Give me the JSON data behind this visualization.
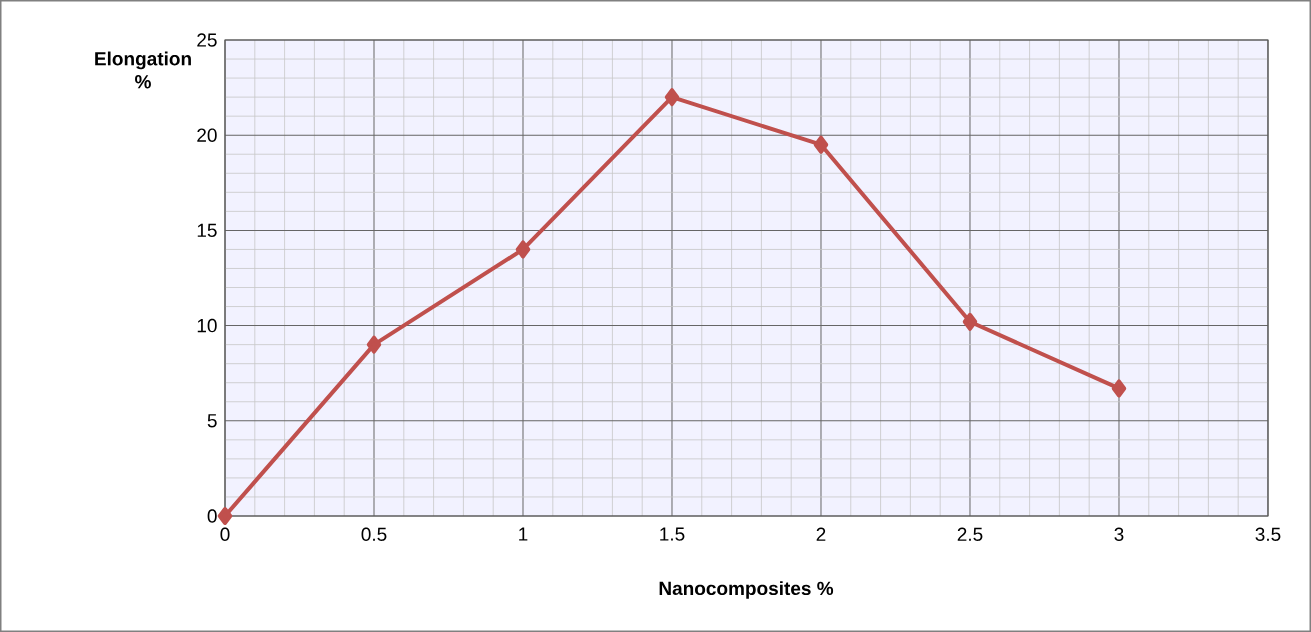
{
  "chart_data": {
    "type": "line",
    "xlabel": "Nanocomposites %",
    "ylabel": "Elongation %",
    "x": [
      0,
      0.5,
      1,
      1.5,
      2,
      2.5,
      3
    ],
    "series": [
      {
        "color": "#c0504d",
        "values": [
          0,
          9,
          14,
          22,
          19.5,
          10.2,
          6.7
        ]
      }
    ],
    "xlim": [
      0,
      3.5
    ],
    "xticks": [
      0,
      0.5,
      1,
      1.5,
      2,
      2.5,
      3,
      3.5
    ],
    "ylim": [
      0,
      25
    ],
    "yticks": [
      0,
      5,
      10,
      15,
      20,
      25
    ],
    "grid": true,
    "marker": "diamond",
    "line_style": "solid",
    "legend": false
  }
}
